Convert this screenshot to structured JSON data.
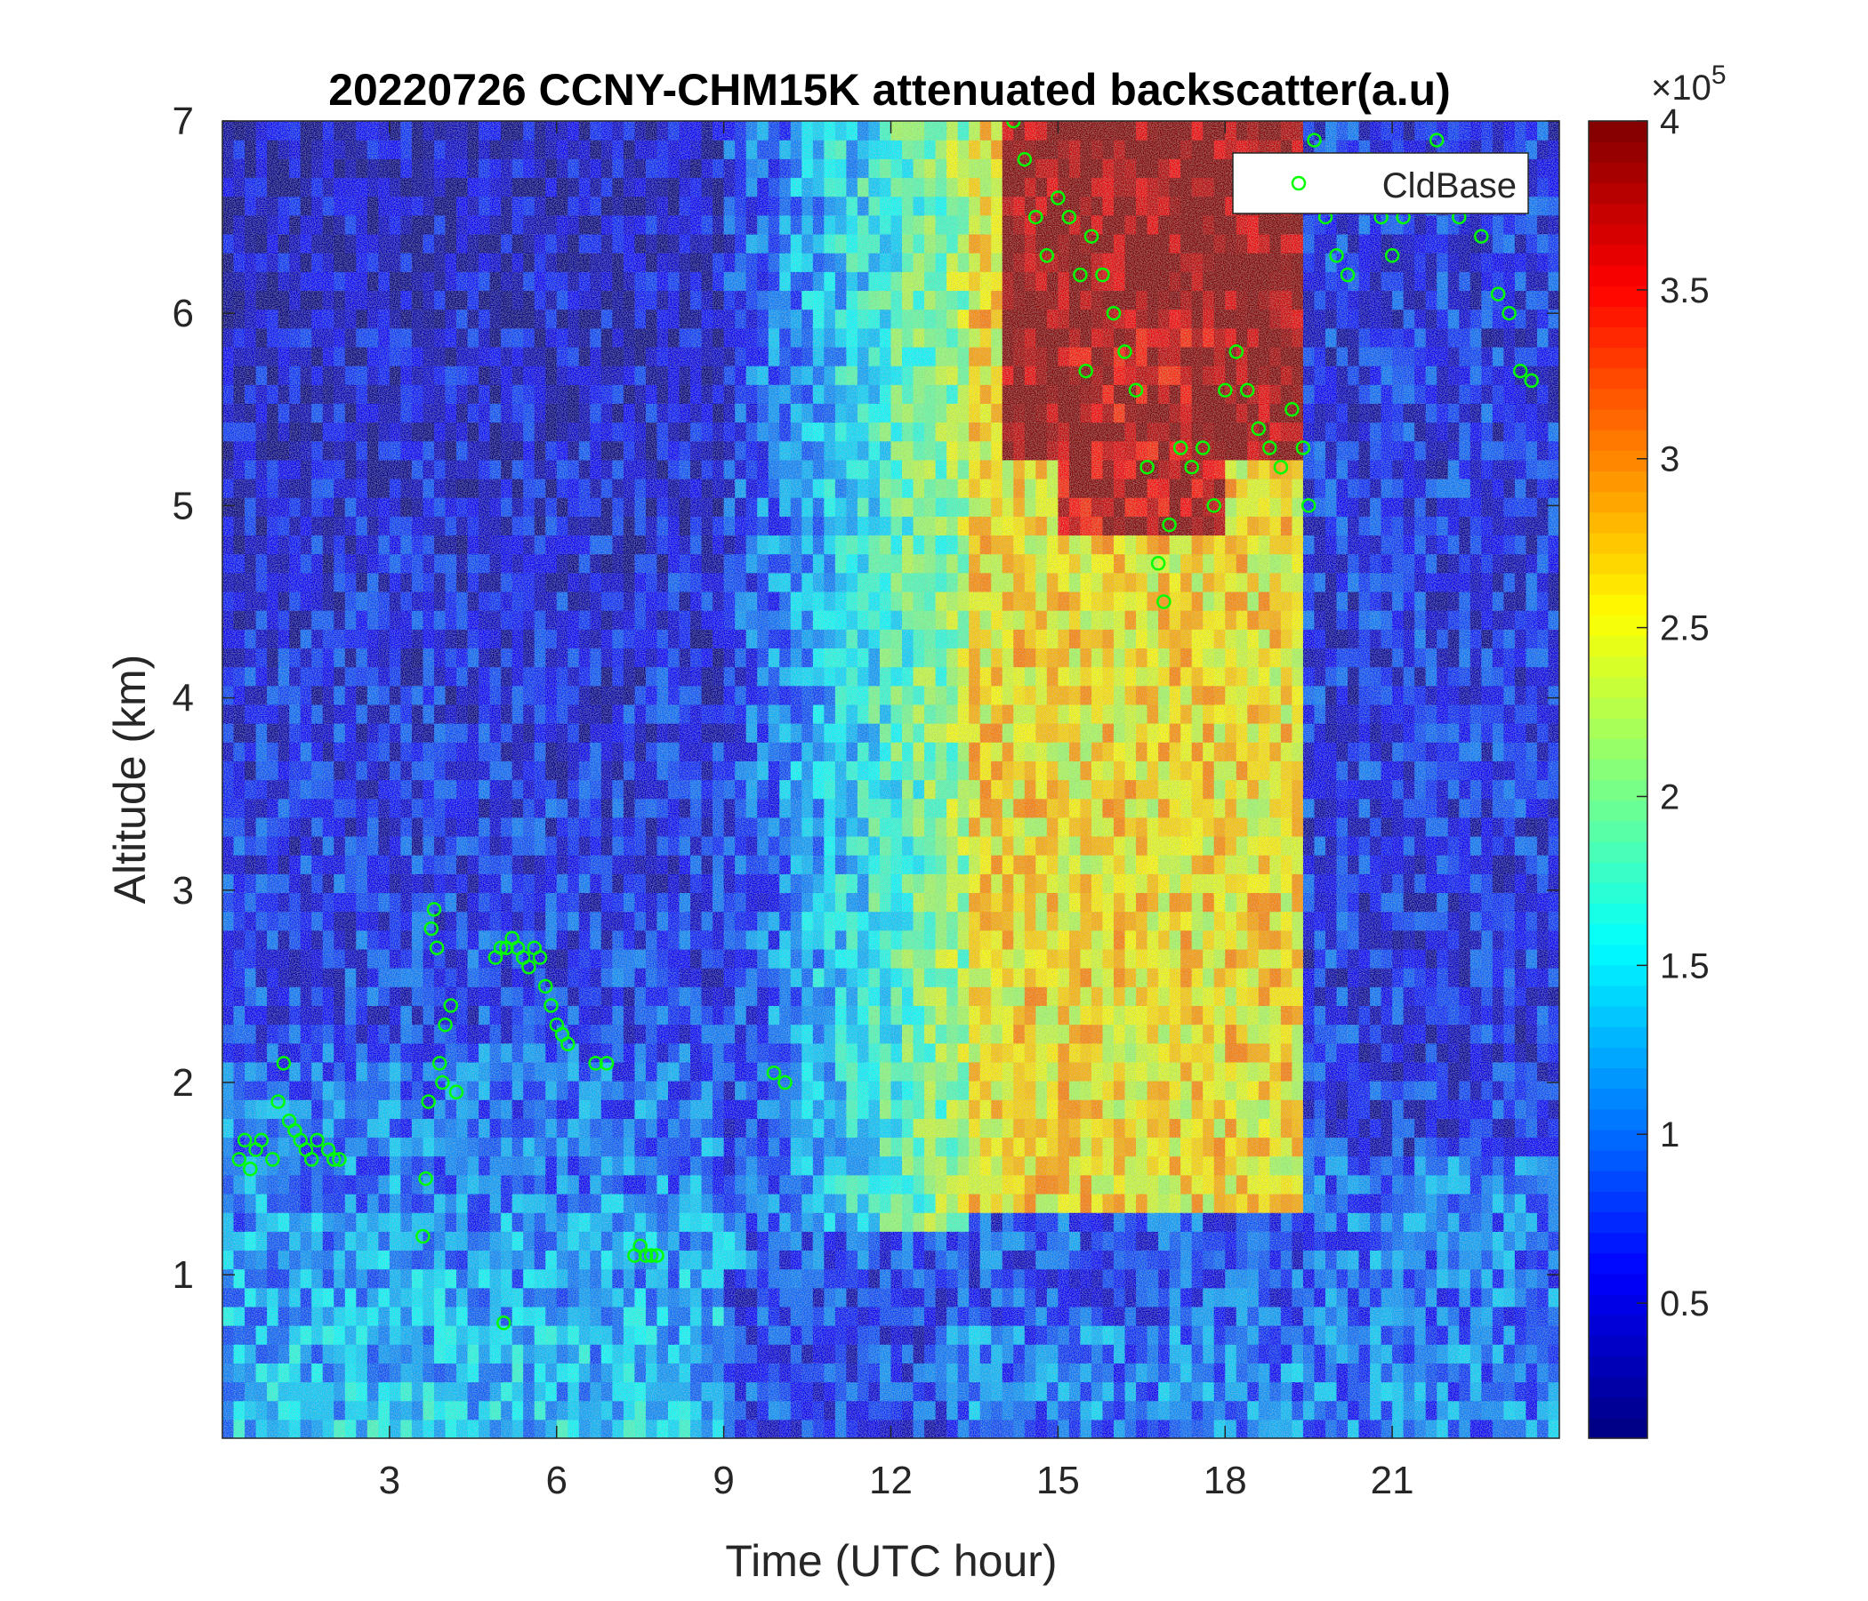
{
  "chart_data": {
    "type": "heatmap",
    "title": "20220726 CCNY-CHM15K attenuated backscatter(a.u)",
    "xlabel": "Time (UTC hour)",
    "ylabel": "Altitude (km)",
    "xlim": [
      0,
      24
    ],
    "ylim": [
      0.15,
      7
    ],
    "xticks": [
      3,
      6,
      9,
      12,
      15,
      18,
      21
    ],
    "yticks": [
      1,
      2,
      3,
      4,
      5,
      6,
      7
    ],
    "colorbar": {
      "colormap": "jet",
      "clim": [
        0.1,
        4
      ],
      "ticks": [
        0.5,
        1,
        1.5,
        2,
        2.5,
        3,
        3.5,
        4
      ],
      "tick_labels": [
        "0.5",
        "1",
        "1.5",
        "2",
        "2.5",
        "3",
        "3.5",
        "4"
      ],
      "exponent_base": "×10",
      "exponent_power": "5"
    },
    "legend": {
      "entries": [
        "CldBase"
      ],
      "location": "top-right"
    },
    "marker_color": "#00ff00",
    "series": [
      {
        "name": "CldBase",
        "type": "scatter",
        "x": [
          0.3,
          0.4,
          0.5,
          0.6,
          0.7,
          0.9,
          1.0,
          1.1,
          1.2,
          1.3,
          1.4,
          1.5,
          1.6,
          1.7,
          1.9,
          2.0,
          2.1,
          3.6,
          3.65,
          3.7,
          3.75,
          3.8,
          3.85,
          3.9,
          3.95,
          4.0,
          4.1,
          4.2,
          4.9,
          5.0,
          5.05,
          5.1,
          5.2,
          5.3,
          5.4,
          5.5,
          5.6,
          5.7,
          5.8,
          5.9,
          6.0,
          6.1,
          6.2,
          6.7,
          6.9,
          7.4,
          7.5,
          7.6,
          7.7,
          7.8,
          9.9,
          10.1,
          14.2,
          14.4,
          14.6,
          14.8,
          15.0,
          15.2,
          15.4,
          15.5,
          15.6,
          15.8,
          16.0,
          16.2,
          16.4,
          16.6,
          16.8,
          16.9,
          17.0,
          17.2,
          17.4,
          17.6,
          17.8,
          18.0,
          18.2,
          18.4,
          18.6,
          18.8,
          19.0,
          19.2,
          19.4,
          19.5,
          19.6,
          19.8,
          20.0,
          20.2,
          20.4,
          20.6,
          20.8,
          21.0,
          21.2,
          21.5,
          21.8,
          22.2,
          22.6,
          22.9,
          23.1,
          23.3,
          23.5
        ],
        "y": [
          1.6,
          1.7,
          1.55,
          1.65,
          1.7,
          1.6,
          1.9,
          2.1,
          1.8,
          1.75,
          1.7,
          1.65,
          1.6,
          1.7,
          1.65,
          1.6,
          1.6,
          1.2,
          1.5,
          1.9,
          2.8,
          2.9,
          2.7,
          2.1,
          2.0,
          2.3,
          2.4,
          1.95,
          2.65,
          2.7,
          0.75,
          2.7,
          2.75,
          2.7,
          2.65,
          2.6,
          2.7,
          2.65,
          2.5,
          2.4,
          2.3,
          2.25,
          2.2,
          2.1,
          2.1,
          1.1,
          1.15,
          1.1,
          1.1,
          1.1,
          2.05,
          2.0,
          7.0,
          6.8,
          6.5,
          6.3,
          6.6,
          6.5,
          6.2,
          5.7,
          6.4,
          6.2,
          6.0,
          5.8,
          5.6,
          5.2,
          4.7,
          4.5,
          4.9,
          5.3,
          5.2,
          5.3,
          5.0,
          5.6,
          5.8,
          5.6,
          5.4,
          5.3,
          5.2,
          5.5,
          5.3,
          5.0,
          6.9,
          6.5,
          6.3,
          6.2,
          6.6,
          6.8,
          6.5,
          6.3,
          6.5,
          6.7,
          6.9,
          6.5,
          6.4,
          6.1,
          6.0,
          5.7,
          5.65
        ]
      }
    ]
  }
}
